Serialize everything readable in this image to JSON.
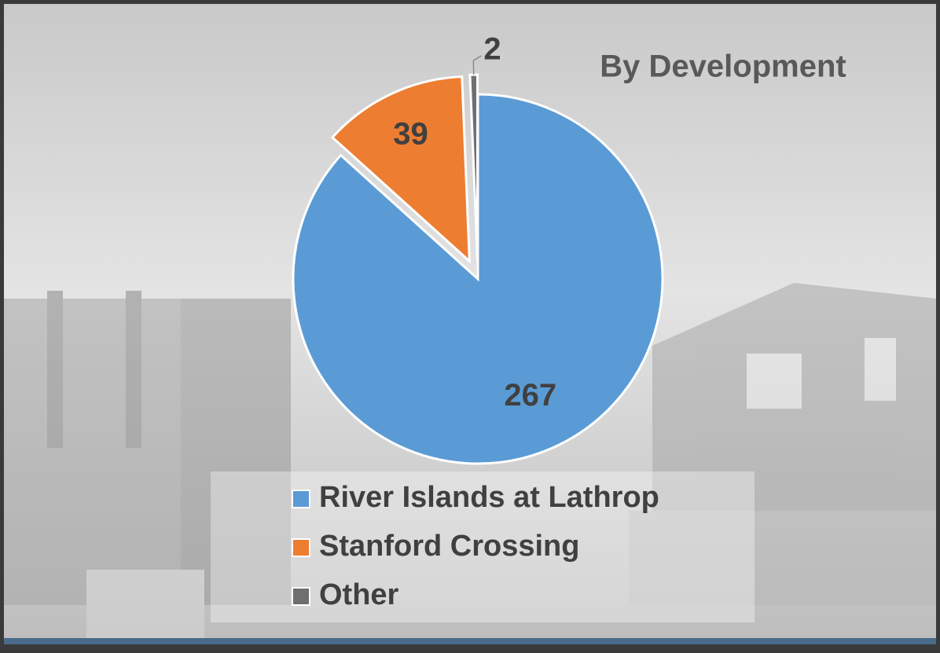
{
  "chart_data": {
    "type": "pie",
    "title": "By Development",
    "categories": [
      "River Islands at Lathrop",
      "Stanford Crossing",
      "Other"
    ],
    "values": [
      267,
      39,
      2
    ],
    "colors": [
      "#5b9bd5",
      "#ed7d31",
      "#6f6f6f"
    ],
    "legend": "bottom"
  }
}
